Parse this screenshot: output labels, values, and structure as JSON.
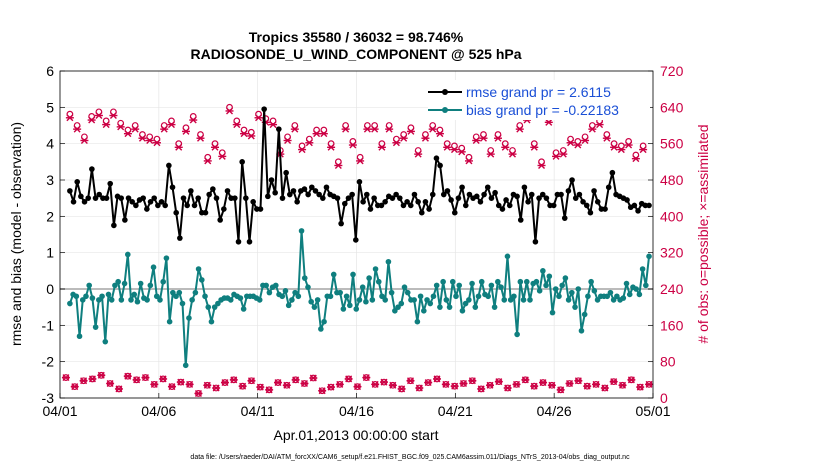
{
  "chart_data": {
    "type": "line",
    "title": "Tropics 35580 / 36032 = 98.746%",
    "subtitle": "RADIOSONDE_U_WIND_COMPONENT @ 525 hPa",
    "xlabel": "Apr.01,2013 00:00:00 start",
    "ylabel": "rmse and bias (model - observation)",
    "ylabel_right": "# of obs: o=possible; ×=assimilated",
    "footnote": "data file: /Users/raeder/DAI/ATM_forcXX/CAM6_setup/f.e21.FHIST_BGC.f09_025.CAM6assim.011/Diags_NTrS_2013-04/obs_diag_output.nc",
    "xlim": [
      0,
      30
    ],
    "ylim": [
      -3,
      6
    ],
    "ylim_right": [
      0,
      720
    ],
    "x_tick_values": [
      0,
      5,
      10,
      15,
      20,
      25,
      30
    ],
    "x_tick_labels": [
      "04/01",
      "04/06",
      "04/11",
      "04/16",
      "04/21",
      "04/26",
      "05/01"
    ],
    "y_tick_labels": [
      "-3",
      "-2",
      "-1",
      "0",
      "1",
      "2",
      "3",
      "4",
      "5",
      "6"
    ],
    "y_right_tick_labels": [
      "0",
      "80",
      "160",
      "240",
      "320",
      "400",
      "480",
      "560",
      "640",
      "720"
    ],
    "legend_position": "top-right",
    "colors": {
      "rmse": "#000000",
      "bias": "#0f7f7f",
      "obs": "#cc0044",
      "zero_line": "#bbbbbb"
    },
    "series": [
      {
        "name": "rmse grand pr = 2.6115",
        "values": [
          2.7,
          2.4,
          2.95,
          2.55,
          2.4,
          2.5,
          3.3,
          2.5,
          2.6,
          2.5,
          2.5,
          2.9,
          1.75,
          2.55,
          2.5,
          1.9,
          2.5,
          2.4,
          2.3,
          2.45,
          2.5,
          2.2,
          2.4,
          2.5,
          2.3,
          2.4,
          2.3,
          3.4,
          2.8,
          2.1,
          1.4,
          2.5,
          2.3,
          2.7,
          2.3,
          2.5,
          2.1,
          2.1,
          2.6,
          2.75,
          2.5,
          1.9,
          2.2,
          2.7,
          2.5,
          2.5,
          1.3,
          3.5,
          2.5,
          1.3,
          2.4,
          2.2,
          2.2,
          4.95,
          2.55,
          3.0,
          2.65,
          4.4,
          2.5,
          3.2,
          2.6,
          2.7,
          2.4,
          2.7,
          2.75,
          2.6,
          2.8,
          2.7,
          2.6,
          2.5,
          2.8,
          2.6,
          2.55,
          2.5,
          1.8,
          2.35,
          2.5,
          2.6,
          1.35,
          2.95,
          2.4,
          2.6,
          2.2,
          2.5,
          2.3,
          2.3,
          2.4,
          2.55,
          2.5,
          2.6,
          2.5,
          2.3,
          2.4,
          2.3,
          2.6,
          2.4,
          2.1,
          2.4,
          2.2,
          2.6,
          3.6,
          3.4,
          2.6,
          2.7,
          2.45,
          2.1,
          2.5,
          2.8,
          2.3,
          2.6,
          2.5,
          2.55,
          2.4,
          2.6,
          2.8,
          2.5,
          2.65,
          2.3,
          2.2,
          2.45,
          2.3,
          2.6,
          2.55,
          1.9,
          2.8,
          2.4,
          2.6,
          1.3,
          2.5,
          2.6,
          2.5,
          2.3,
          2.3,
          2.6,
          2.6,
          1.95,
          2.7,
          3.0,
          2.5,
          2.6,
          2.4,
          2.3,
          2.1,
          2.7,
          2.4,
          2.2,
          2.2,
          2.8,
          3.2,
          2.6,
          2.55,
          2.5,
          2.45,
          2.25,
          2.3,
          2.15,
          2.35,
          2.3,
          2.3
        ]
      },
      {
        "name": "bias grand pr = -0.22183",
        "values": [
          -0.4,
          -0.15,
          -0.2,
          -1.3,
          -0.3,
          -0.2,
          0.1,
          -0.25,
          -1.05,
          -0.3,
          -0.2,
          -1.45,
          -0.15,
          -0.3,
          0.1,
          0.2,
          -0.3,
          0.15,
          0.95,
          -0.3,
          -0.15,
          -0.35,
          0.15,
          -0.25,
          -0.3,
          0.1,
          0.6,
          -0.2,
          -0.3,
          0.2,
          0.85,
          -0.9,
          -0.1,
          -0.2,
          -0.1,
          -0.4,
          -2.1,
          -0.8,
          -0.3,
          -0.1,
          0.55,
          0.25,
          -0.2,
          -0.5,
          -0.9,
          -0.5,
          -0.4,
          -0.3,
          -0.25,
          -0.25,
          -0.3,
          -0.15,
          -0.2,
          -0.25,
          -0.55,
          -0.2,
          -0.2,
          -0.2,
          -0.25,
          -0.3,
          0.1,
          0.1,
          -0.1,
          0.05,
          0.1,
          -0.15,
          -0.2,
          -0.05,
          -0.45,
          -0.3,
          -0.1,
          -0.2,
          1.6,
          0.3,
          0.05,
          -0.35,
          -0.5,
          -0.3,
          -1.1,
          -0.9,
          -0.2,
          -0.2,
          0.4,
          -0.1,
          -0.1,
          -0.55,
          -0.2,
          -0.45,
          0.4,
          -0.55,
          -0.3,
          0.05,
          -0.35,
          0.3,
          -0.3,
          0.55,
          0.2,
          -0.2,
          -0.3,
          0.75,
          -0.1,
          -0.6,
          -0.5,
          -0.4,
          0.05,
          -0.1,
          -0.3,
          -0.3,
          -0.9,
          -0.2,
          -0.6,
          -0.3,
          -0.4,
          -0.2,
          0.1,
          -0.5,
          0.2,
          -0.3,
          -0.5,
          0.2,
          -0.2,
          0.1,
          -0.6,
          -0.4,
          -0.3,
          0.15,
          -0.5,
          -0.2,
          0.2,
          -0.15,
          -0.2,
          0.1,
          -0.5,
          0.2,
          0.05,
          -0.3,
          0.9,
          -0.3,
          -0.2,
          -1.25,
          0.2,
          -0.3,
          0.2,
          -0.3,
          0.15,
          0.2,
          -0.05,
          0.5,
          0.1,
          0.35,
          -0.65,
          0.0,
          -0.2,
          0.1,
          0.3,
          -0.3,
          -0.1,
          -0.5,
          0.0,
          -1.15,
          -0.7,
          -0.2,
          0.2,
          -0.05,
          -0.3,
          -0.2,
          -0.2,
          -0.2,
          -0.1,
          -0.3,
          -0.2,
          -0.3,
          -0.25,
          0.15,
          -0.15,
          0.05,
          0.0,
          -0.15,
          0.55,
          0.1,
          0.9
        ]
      }
    ],
    "obs_possible": [
      625,
      600,
      575,
      620,
      630,
      610,
      630,
      605,
      590,
      600,
      580,
      575,
      570,
      600,
      610,
      560,
      595,
      620,
      580,
      530,
      560,
      540,
      640,
      610,
      590,
      585,
      625,
      615,
      610,
      545,
      575,
      600,
      555,
      570,
      590,
      590,
      560,
      520,
      600,
      565,
      530,
      600,
      600,
      560,
      600,
      570,
      580,
      595,
      545,
      580,
      600,
      590,
      560,
      555,
      550,
      530,
      575,
      580,
      545,
      580,
      560,
      545,
      600,
      620,
      560,
      520,
      615,
      540,
      545,
      570,
      565,
      575,
      600,
      610,
      580,
      560,
      555,
      565,
      535,
      555
    ],
    "obs_assimilated": [
      45,
      25,
      38,
      42,
      50,
      32,
      20,
      48,
      40,
      45,
      30,
      42,
      25,
      35,
      30,
      10,
      28,
      22,
      34,
      40,
      26,
      38,
      24,
      18,
      34,
      28,
      40,
      32,
      44,
      16,
      24,
      30,
      42,
      25,
      45,
      30,
      35,
      28,
      20,
      38,
      22,
      34,
      42,
      30,
      26,
      32,
      38,
      20,
      28,
      36,
      22,
      30,
      40,
      26,
      34,
      28,
      18,
      32,
      38,
      26,
      30,
      22,
      36,
      28,
      40,
      24,
      30
    ]
  }
}
